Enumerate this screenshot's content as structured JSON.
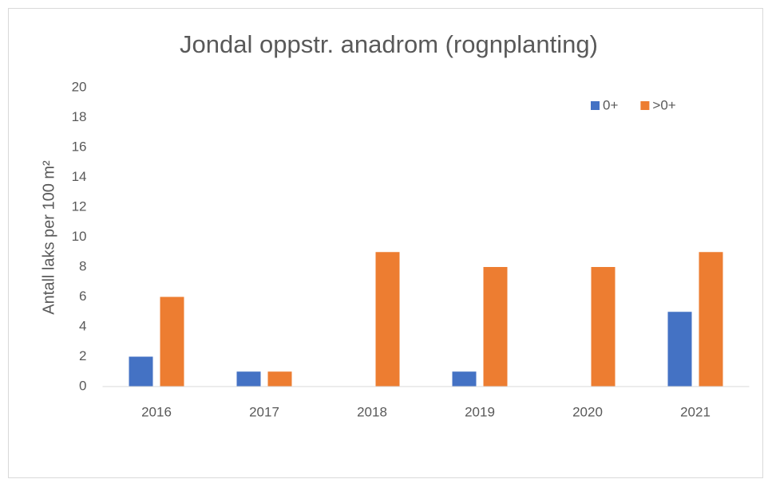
{
  "chart_data": {
    "type": "bar",
    "title": "Jondal oppstr. anadrom (rognplanting)",
    "y_label": "Antall laks  per 100 m²",
    "categories": [
      "2016",
      "2017",
      "2018",
      "2019",
      "2020",
      "2021"
    ],
    "series": [
      {
        "name": "0+",
        "color": "#4472c4",
        "values": [
          2,
          1,
          0,
          1,
          0,
          5
        ]
      },
      {
        "name": ">0+",
        "color": "#ed7d31",
        "values": [
          6,
          1,
          9,
          8,
          8,
          9
        ]
      }
    ],
    "ylim": [
      0,
      20
    ],
    "yticks": [
      0,
      2,
      4,
      6,
      8,
      10,
      12,
      14,
      16,
      18,
      20
    ],
    "grid": false,
    "legend": "top-right"
  }
}
